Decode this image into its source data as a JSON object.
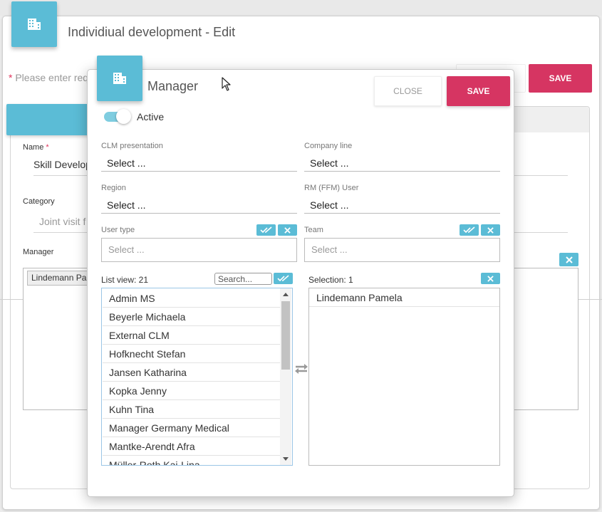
{
  "background": {
    "title": "Individiual development - Edit",
    "hint_prefix": "* ",
    "hint": "Please enter req",
    "save_label": "SAVE",
    "fields": {
      "name_label": "Name",
      "name_required": "*",
      "name_value": "Skill Develop",
      "category_label": "Category",
      "category_value": "Joint visit f",
      "manager_label": "Manager",
      "manager_chip": "Lindemann Pa"
    }
  },
  "modal": {
    "title": "Manager",
    "close_label": "CLOSE",
    "save_label": "SAVE",
    "active": {
      "label": "Active",
      "on": true
    },
    "fields": [
      {
        "label": "CLM presentation",
        "value": "Select ..."
      },
      {
        "label": "Company line",
        "value": "Select ..."
      },
      {
        "label": "Region",
        "value": "Select ..."
      },
      {
        "label": "RM (FFM) User",
        "value": "Select ..."
      }
    ],
    "user_type": {
      "label": "User type",
      "placeholder": "Select ..."
    },
    "team": {
      "label": "Team",
      "placeholder": "Select ..."
    },
    "list_view": {
      "label": "List view: 21",
      "search_placeholder": "Search...",
      "items": [
        "Admin MS",
        "Beyerle Michaela",
        "External CLM",
        "Hofknecht Stefan",
        "Jansen Katharina",
        "Kopka Jenny",
        "Kuhn Tina",
        "Manager Germany Medical",
        "Mantke-Arendt Afra",
        "Müller-Roth Kai-Lina"
      ]
    },
    "selection": {
      "label": "Selection: 1",
      "items": [
        "Lindemann Pamela"
      ]
    }
  },
  "colors": {
    "accent": "#5bbcd6",
    "primary": "#d63562"
  },
  "icons": [
    "building-icon",
    "double-check-icon",
    "close-icon",
    "swap-arrows-icon",
    "cursor-icon"
  ]
}
